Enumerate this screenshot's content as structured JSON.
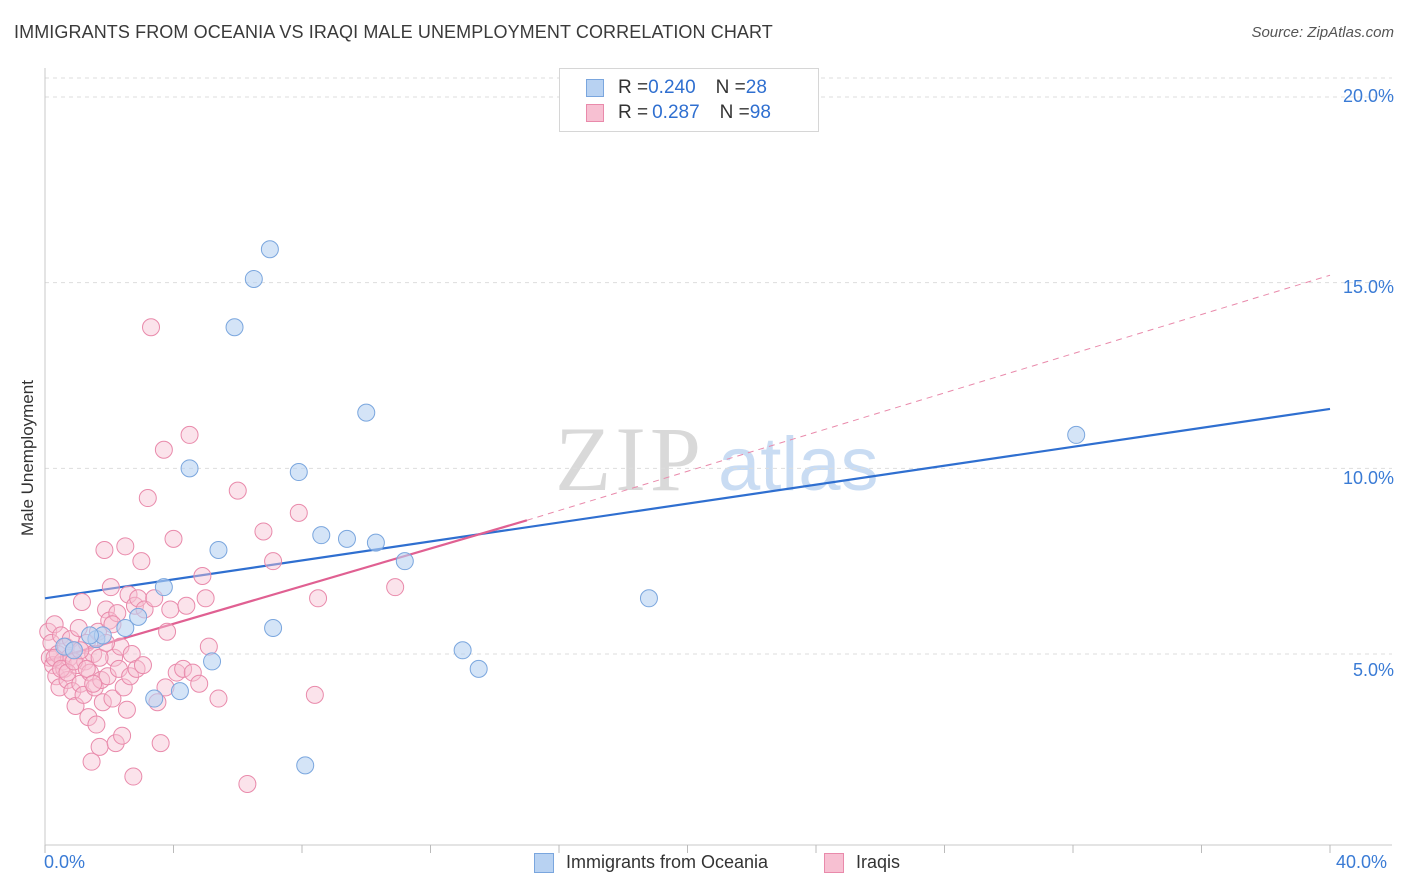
{
  "title": "IMMIGRANTS FROM OCEANIA VS IRAQI MALE UNEMPLOYMENT CORRELATION CHART",
  "source": "Source: ZipAtlas.com",
  "watermark": {
    "zip": "ZIP",
    "atlas": "atlas"
  },
  "legend_top": {
    "rows": [
      {
        "r_label": "R = ",
        "r_value": "0.240",
        "n_label": "N = ",
        "n_value": "28"
      },
      {
        "r_label": "R = ",
        "r_value": "0.287",
        "n_label": "N = ",
        "n_value": "98"
      }
    ]
  },
  "colors": {
    "blue_fill": "#b8d2f2",
    "blue_stroke": "#7aa6de",
    "blue_line": "#2f6fd0",
    "pink_fill": "#f7c0d2",
    "pink_stroke": "#e98aab",
    "pink_line": "#e06092",
    "grid": "#dddddd",
    "tick_label": "#3a7bd5"
  },
  "chart_data": {
    "type": "scatter",
    "title": "IMMIGRANTS FROM OCEANIA VS IRAQI MALE UNEMPLOYMENT CORRELATION CHART",
    "xlabel": "",
    "ylabel": "Male Unemployment",
    "xlim": [
      0,
      40
    ],
    "ylim": [
      0.5,
      20.5
    ],
    "x_tick_labels": [
      "0.0%",
      "40.0%"
    ],
    "y_ticks": [
      5,
      10,
      15,
      20
    ],
    "y_tick_labels": [
      "5.0%",
      "10.0%",
      "15.0%",
      "20.0%"
    ],
    "grid": true,
    "legend_position": "top-center",
    "series": [
      {
        "name": "Immigrants from Oceania",
        "color": "#b8d2f2",
        "r": 0.24,
        "n": 28,
        "trend": {
          "x0": 0,
          "y0": 6.5,
          "x1": 40,
          "y1": 11.6,
          "style": "solid"
        },
        "points": [
          [
            0.6,
            5.2
          ],
          [
            0.9,
            5.1
          ],
          [
            1.6,
            5.4
          ],
          [
            1.8,
            5.5
          ],
          [
            2.5,
            5.7
          ],
          [
            2.9,
            6.0
          ],
          [
            3.7,
            6.8
          ],
          [
            3.4,
            3.8
          ],
          [
            4.2,
            4.0
          ],
          [
            4.5,
            10.0
          ],
          [
            5.2,
            4.8
          ],
          [
            5.4,
            7.8
          ],
          [
            5.9,
            13.8
          ],
          [
            6.5,
            15.1
          ],
          [
            7.0,
            15.9
          ],
          [
            7.1,
            5.7
          ],
          [
            7.9,
            9.9
          ],
          [
            8.1,
            2.0
          ],
          [
            8.6,
            8.2
          ],
          [
            9.4,
            8.1
          ],
          [
            10.0,
            11.5
          ],
          [
            10.3,
            8.0
          ],
          [
            11.2,
            7.5
          ],
          [
            13.0,
            5.1
          ],
          [
            13.5,
            4.6
          ],
          [
            18.8,
            6.5
          ],
          [
            32.1,
            10.9
          ],
          [
            1.4,
            5.5
          ]
        ]
      },
      {
        "name": "Iraqis",
        "color": "#f7c0d2",
        "r": 0.287,
        "n": 98,
        "trend": {
          "x0": 0,
          "y0": 4.8,
          "x1": 15,
          "y1": 8.6,
          "style": "solid",
          "extended": {
            "x1": 40,
            "y1": 15.2,
            "style": "dashed"
          }
        },
        "points": [
          [
            0.1,
            5.6
          ],
          [
            0.15,
            4.9
          ],
          [
            0.2,
            5.3
          ],
          [
            0.25,
            4.7
          ],
          [
            0.3,
            5.8
          ],
          [
            0.35,
            4.4
          ],
          [
            0.4,
            5.0
          ],
          [
            0.45,
            4.1
          ],
          [
            0.5,
            5.5
          ],
          [
            0.55,
            4.8
          ],
          [
            0.6,
            4.6
          ],
          [
            0.65,
            5.2
          ],
          [
            0.7,
            4.3
          ],
          [
            0.75,
            4.9
          ],
          [
            0.8,
            5.4
          ],
          [
            0.85,
            4.0
          ],
          [
            0.9,
            5.1
          ],
          [
            0.95,
            3.6
          ],
          [
            1.0,
            4.7
          ],
          [
            1.05,
            5.7
          ],
          [
            1.1,
            4.2
          ],
          [
            1.15,
            6.4
          ],
          [
            1.2,
            3.9
          ],
          [
            1.25,
            4.8
          ],
          [
            1.3,
            5.3
          ],
          [
            1.35,
            3.3
          ],
          [
            1.4,
            4.5
          ],
          [
            1.45,
            2.1
          ],
          [
            1.5,
            5.0
          ],
          [
            1.55,
            4.1
          ],
          [
            1.6,
            3.1
          ],
          [
            1.65,
            5.6
          ],
          [
            1.7,
            2.5
          ],
          [
            1.75,
            4.3
          ],
          [
            1.8,
            3.7
          ],
          [
            1.85,
            7.8
          ],
          [
            1.9,
            6.2
          ],
          [
            1.95,
            4.4
          ],
          [
            2.0,
            5.9
          ],
          [
            2.05,
            6.8
          ],
          [
            2.1,
            3.8
          ],
          [
            2.15,
            4.9
          ],
          [
            2.2,
            2.6
          ],
          [
            2.25,
            6.1
          ],
          [
            2.3,
            4.6
          ],
          [
            2.35,
            5.2
          ],
          [
            2.4,
            2.8
          ],
          [
            2.45,
            4.1
          ],
          [
            2.5,
            7.9
          ],
          [
            2.55,
            3.5
          ],
          [
            2.6,
            6.6
          ],
          [
            2.65,
            4.4
          ],
          [
            2.7,
            5.0
          ],
          [
            2.75,
            1.7
          ],
          [
            2.8,
            6.3
          ],
          [
            2.85,
            4.6
          ],
          [
            2.9,
            6.5
          ],
          [
            3.0,
            7.5
          ],
          [
            3.05,
            4.7
          ],
          [
            3.1,
            6.2
          ],
          [
            3.2,
            9.2
          ],
          [
            3.3,
            13.8
          ],
          [
            3.4,
            6.5
          ],
          [
            3.5,
            3.7
          ],
          [
            3.6,
            2.6
          ],
          [
            3.7,
            10.5
          ],
          [
            3.75,
            4.1
          ],
          [
            3.8,
            5.6
          ],
          [
            3.9,
            6.2
          ],
          [
            4.0,
            8.1
          ],
          [
            4.1,
            4.5
          ],
          [
            4.3,
            4.6
          ],
          [
            4.4,
            6.3
          ],
          [
            4.5,
            10.9
          ],
          [
            4.6,
            4.5
          ],
          [
            4.8,
            4.2
          ],
          [
            4.9,
            7.1
          ],
          [
            5.0,
            6.5
          ],
          [
            5.1,
            5.2
          ],
          [
            5.4,
            3.8
          ],
          [
            6.0,
            9.4
          ],
          [
            6.3,
            1.5
          ],
          [
            6.8,
            8.3
          ],
          [
            7.1,
            7.5
          ],
          [
            7.9,
            8.8
          ],
          [
            8.4,
            3.9
          ],
          [
            8.5,
            6.5
          ],
          [
            10.9,
            6.8
          ],
          [
            0.3,
            4.9
          ],
          [
            0.5,
            4.6
          ],
          [
            0.7,
            4.5
          ],
          [
            0.9,
            4.8
          ],
          [
            1.1,
            5.1
          ],
          [
            1.3,
            4.6
          ],
          [
            1.5,
            4.2
          ],
          [
            1.7,
            4.9
          ],
          [
            1.9,
            5.3
          ],
          [
            2.1,
            5.8
          ]
        ]
      }
    ]
  },
  "legend_bottom": [
    {
      "label": "Immigrants from Oceania"
    },
    {
      "label": "Iraqis"
    }
  ]
}
